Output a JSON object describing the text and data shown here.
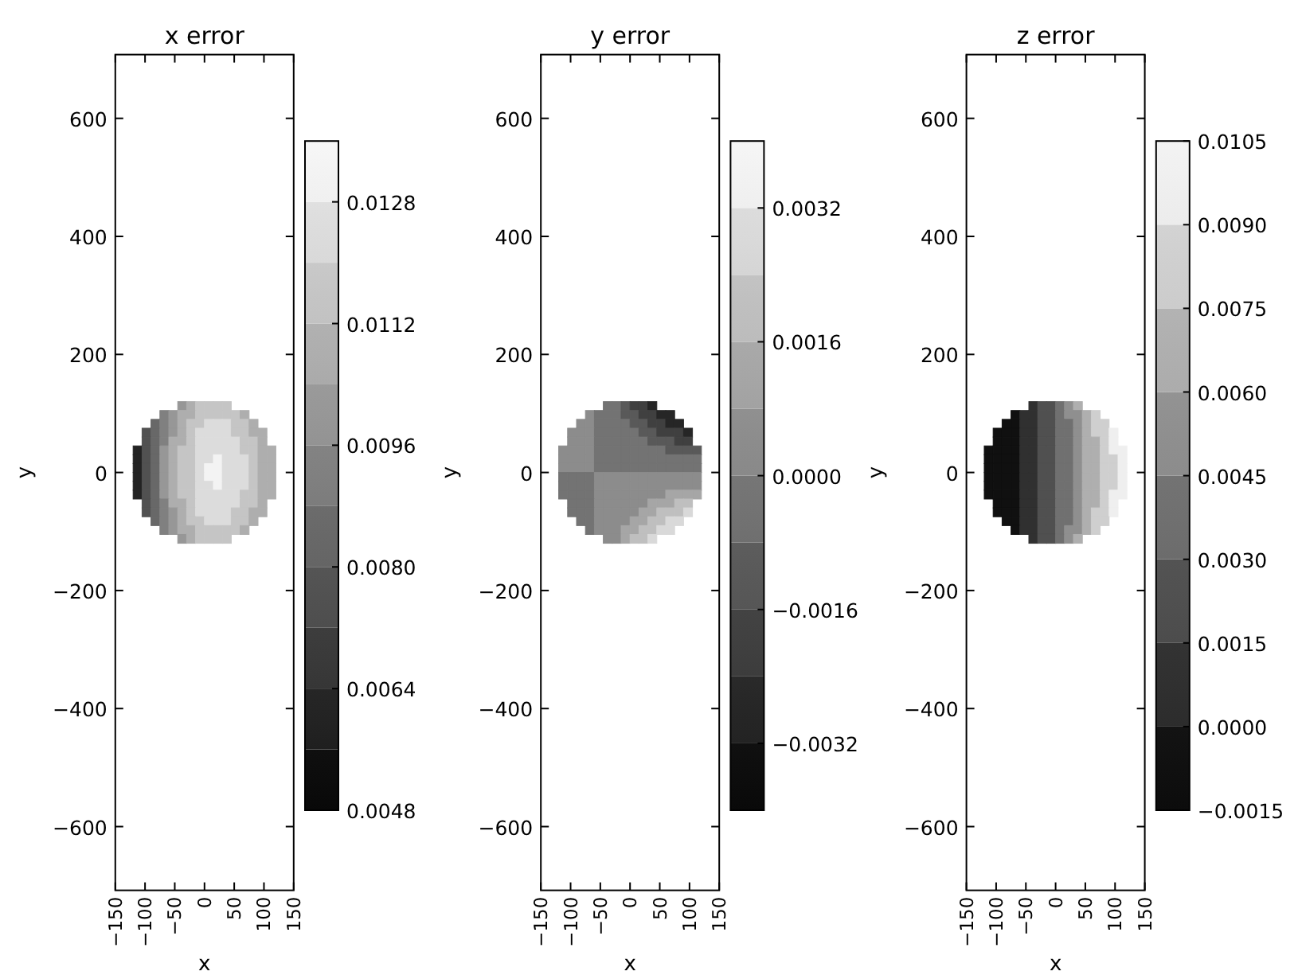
{
  "chart_data": [
    {
      "type": "scatter",
      "title": "x error",
      "xlabel": "x",
      "ylabel": "y",
      "marker": "square",
      "xlim": [
        -150,
        150
      ],
      "ylim": [
        -708,
        708
      ],
      "xticks": [
        {
          "value": -150,
          "label": "−150"
        },
        {
          "value": -100,
          "label": "−100"
        },
        {
          "value": -50,
          "label": "−50"
        },
        0,
        50,
        100,
        150
      ],
      "yticks": [
        {
          "value": -600,
          "label": "−600"
        },
        {
          "value": -400,
          "label": "−400"
        },
        {
          "value": -200,
          "label": "−200"
        },
        0,
        200,
        400,
        600
      ],
      "clim": [
        0.0048,
        0.0136
      ],
      "cticks": [
        0.0048,
        0.0064,
        {
          "value": 0.008,
          "label": "0.0080"
        },
        0.0096,
        0.0112,
        0.0128
      ],
      "x": [
        -37.5,
        -22.5,
        -7.5,
        7.5,
        22.5,
        37.5,
        -67.5,
        -52.5,
        -37.5,
        -22.5,
        -7.5,
        7.5,
        22.5,
        37.5,
        52.5,
        67.5,
        -82.5,
        -67.5,
        -52.5,
        -37.5,
        -22.5,
        -7.5,
        7.5,
        22.5,
        37.5,
        52.5,
        67.5,
        82.5,
        -97.5,
        -82.5,
        -67.5,
        -52.5,
        -37.5,
        -22.5,
        -7.5,
        7.5,
        22.5,
        37.5,
        52.5,
        67.5,
        82.5,
        97.5,
        -97.5,
        -82.5,
        -67.5,
        -52.5,
        -37.5,
        -22.5,
        -7.5,
        7.5,
        22.5,
        37.5,
        52.5,
        67.5,
        82.5,
        97.5,
        -112.5,
        -97.5,
        -82.5,
        -67.5,
        -52.5,
        -37.5,
        -22.5,
        -7.5,
        7.5,
        22.5,
        37.5,
        52.5,
        67.5,
        82.5,
        97.5,
        112.5,
        -112.5,
        -97.5,
        -82.5,
        -67.5,
        -52.5,
        -37.5,
        -22.5,
        -7.5,
        7.5,
        22.5,
        37.5,
        52.5,
        67.5,
        82.5,
        97.5,
        112.5,
        -112.5,
        -97.5,
        -82.5,
        -67.5,
        -52.5,
        -37.5,
        -22.5,
        -7.5,
        7.5,
        22.5,
        37.5,
        52.5,
        67.5,
        82.5,
        97.5,
        112.5,
        -112.5,
        -97.5,
        -82.5,
        -67.5,
        -52.5,
        -37.5,
        -22.5,
        -7.5,
        7.5,
        22.5,
        37.5,
        52.5,
        67.5,
        82.5,
        97.5,
        112.5,
        -112.5,
        -97.5,
        -82.5,
        -67.5,
        -52.5,
        -37.5,
        -22.5,
        -7.5,
        7.5,
        22.5,
        37.5,
        52.5,
        67.5,
        82.5,
        97.5,
        112.5,
        -112.5,
        -97.5,
        -82.5,
        -67.5,
        -52.5,
        -37.5,
        -22.5,
        -7.5,
        7.5,
        22.5,
        37.5,
        52.5,
        67.5,
        82.5,
        97.5,
        112.5,
        -97.5,
        -82.5,
        -67.5,
        -52.5,
        -37.5,
        -22.5,
        -7.5,
        7.5,
        22.5,
        37.5,
        52.5,
        67.5,
        82.5,
        97.5,
        -97.5,
        -82.5,
        -67.5,
        -52.5,
        -37.5,
        -22.5,
        -7.5,
        7.5,
        22.5,
        37.5,
        52.5,
        67.5,
        82.5,
        97.5,
        -82.5,
        -67.5,
        -52.5,
        -37.5,
        -22.5,
        -7.5,
        7.5,
        22.5,
        37.5,
        52.5,
        67.5,
        82.5,
        -67.5,
        -52.5,
        -37.5,
        -22.5,
        -7.5,
        7.5,
        22.5,
        37.5,
        52.5,
        67.5,
        -37.5,
        -22.5,
        -7.5,
        7.5,
        22.5,
        37.5
      ],
      "values": [
        112.5,
        112.5,
        112.5,
        112.5,
        112.5,
        112.5,
        97.5,
        97.5,
        97.5,
        97.5,
        97.5,
        97.5,
        97.5,
        97.5,
        97.5,
        97.5,
        82.5,
        82.5,
        82.5,
        82.5,
        82.5,
        82.5,
        82.5,
        82.5,
        82.5,
        82.5,
        82.5,
        82.5,
        67.5,
        67.5,
        67.5,
        67.5,
        67.5,
        67.5,
        67.5,
        67.5,
        67.5,
        67.5,
        67.5,
        67.5,
        67.5,
        67.5,
        52.5,
        52.5,
        52.5,
        52.5,
        52.5,
        52.5,
        52.5,
        52.5,
        52.5,
        52.5,
        52.5,
        52.5,
        52.5,
        52.5,
        37.5,
        37.5,
        37.5,
        37.5,
        37.5,
        37.5,
        37.5,
        37.5,
        37.5,
        37.5,
        37.5,
        37.5,
        37.5,
        37.5,
        37.5,
        37.5,
        22.5,
        22.5,
        22.5,
        22.5,
        22.5,
        22.5,
        22.5,
        22.5,
        22.5,
        22.5,
        22.5,
        22.5,
        22.5,
        22.5,
        22.5,
        22.5,
        7.5,
        7.5,
        7.5,
        7.5,
        7.5,
        7.5,
        7.5,
        7.5,
        7.5,
        7.5,
        7.5,
        7.5,
        7.5,
        7.5,
        7.5,
        7.5,
        -7.5,
        -7.5,
        -7.5,
        -7.5,
        -7.5,
        -7.5,
        -7.5,
        -7.5,
        -7.5,
        -7.5,
        -7.5,
        -7.5,
        -7.5,
        -7.5,
        -7.5,
        -7.5,
        -22.5,
        -22.5,
        -22.5,
        -22.5,
        -22.5,
        -22.5,
        -22.5,
        -22.5,
        -22.5,
        -22.5,
        -22.5,
        -22.5,
        -22.5,
        -22.5,
        -22.5,
        -22.5,
        -37.5,
        -37.5,
        -37.5,
        -37.5,
        -37.5,
        -37.5,
        -37.5,
        -37.5,
        -37.5,
        -37.5,
        -37.5,
        -37.5,
        -37.5,
        -37.5,
        -37.5,
        -37.5,
        -52.5,
        -52.5,
        -52.5,
        -52.5,
        -52.5,
        -52.5,
        -52.5,
        -52.5,
        -52.5,
        -52.5,
        -52.5,
        -52.5,
        -52.5,
        -52.5,
        -67.5,
        -67.5,
        -67.5,
        -67.5,
        -67.5,
        -67.5,
        -67.5,
        -67.5,
        -67.5,
        -67.5,
        -67.5,
        -67.5,
        -67.5,
        -67.5,
        -82.5,
        -82.5,
        -82.5,
        -82.5,
        -82.5,
        -82.5,
        -82.5,
        -82.5,
        -82.5,
        -82.5,
        -82.5,
        -82.5,
        -97.5,
        -97.5,
        -97.5,
        -97.5,
        -97.5,
        -97.5,
        -97.5,
        -97.5,
        -97.5,
        -97.5,
        -112.5,
        -112.5,
        -112.5,
        -112.5,
        -112.5,
        -112.5
      ],
      "cvalues": [
        0.01,
        0.0108,
        0.0116,
        0.0116,
        0.0116,
        0.0116,
        0.0092,
        0.01,
        0.0108,
        0.0108,
        0.0116,
        0.0116,
        0.0116,
        0.0116,
        0.0116,
        0.0108,
        0.0084,
        0.0092,
        0.01,
        0.0108,
        0.0116,
        0.0116,
        0.0124,
        0.0124,
        0.0124,
        0.0116,
        0.0116,
        0.0108,
        0.0076,
        0.0084,
        0.0092,
        0.01,
        0.0108,
        0.0116,
        0.0124,
        0.0124,
        0.0124,
        0.0124,
        0.0116,
        0.0116,
        0.0108,
        0.0108,
        0.0076,
        0.0084,
        0.0092,
        0.0108,
        0.0108,
        0.0116,
        0.0124,
        0.0124,
        0.0124,
        0.0124,
        0.0124,
        0.0116,
        0.0116,
        0.0108,
        0.006,
        0.0076,
        0.0084,
        0.01,
        0.0108,
        0.0116,
        0.0116,
        0.0124,
        0.0124,
        0.0124,
        0.0124,
        0.0124,
        0.0116,
        0.0116,
        0.0108,
        0.0108,
        0.006,
        0.0076,
        0.0084,
        0.01,
        0.0108,
        0.0116,
        0.0116,
        0.0124,
        0.0124,
        0.0132,
        0.0124,
        0.0124,
        0.0124,
        0.0116,
        0.0108,
        0.0108,
        0.006,
        0.0076,
        0.0084,
        0.01,
        0.0108,
        0.0116,
        0.0116,
        0.0124,
        0.0132,
        0.0132,
        0.0124,
        0.0124,
        0.0124,
        0.0116,
        0.0108,
        0.0108,
        0.006,
        0.0076,
        0.0084,
        0.01,
        0.0108,
        0.0116,
        0.0116,
        0.0124,
        0.0132,
        0.0132,
        0.0124,
        0.0124,
        0.0124,
        0.0116,
        0.0108,
        0.0108,
        0.006,
        0.0076,
        0.0084,
        0.01,
        0.0108,
        0.0116,
        0.0116,
        0.0124,
        0.0124,
        0.0132,
        0.0124,
        0.0124,
        0.0124,
        0.0116,
        0.0108,
        0.0108,
        0.006,
        0.0076,
        0.0084,
        0.01,
        0.0108,
        0.0116,
        0.0116,
        0.0124,
        0.0124,
        0.0124,
        0.0124,
        0.0124,
        0.0116,
        0.0116,
        0.0108,
        0.0108,
        0.0076,
        0.0084,
        0.0092,
        0.0108,
        0.0108,
        0.0116,
        0.0124,
        0.0124,
        0.0124,
        0.0124,
        0.0124,
        0.0116,
        0.0116,
        0.0108,
        0.0076,
        0.0084,
        0.0092,
        0.01,
        0.0108,
        0.0116,
        0.0124,
        0.0124,
        0.0124,
        0.0124,
        0.0116,
        0.0116,
        0.0108,
        0.0108,
        0.0084,
        0.0092,
        0.01,
        0.0108,
        0.0116,
        0.0116,
        0.0124,
        0.0124,
        0.0124,
        0.0116,
        0.0116,
        0.0108,
        0.0092,
        0.01,
        0.0108,
        0.0108,
        0.0116,
        0.0116,
        0.0116,
        0.0116,
        0.0116,
        0.0108,
        0.01,
        0.0108,
        0.0116,
        0.0116,
        0.0116,
        0.0116
      ]
    },
    {
      "type": "scatter",
      "title": "y error",
      "xlabel": "x",
      "ylabel": "y",
      "marker": "square",
      "xlim": [
        -150,
        150
      ],
      "ylim": [
        -708,
        708
      ],
      "xticks": [
        {
          "value": -150,
          "label": "−150"
        },
        {
          "value": -100,
          "label": "−100"
        },
        {
          "value": -50,
          "label": "−50"
        },
        0,
        50,
        100,
        150
      ],
      "yticks": [
        {
          "value": -600,
          "label": "−600"
        },
        {
          "value": -400,
          "label": "−400"
        },
        {
          "value": -200,
          "label": "−200"
        },
        0,
        200,
        400,
        600
      ],
      "clim": [
        -0.004,
        0.004
      ],
      "cticks": [
        {
          "value": -0.0032,
          "label": "−0.0032"
        },
        {
          "value": -0.0016,
          "label": "−0.0016"
        },
        {
          "value": 0,
          "label": "0.0000"
        },
        0.0016,
        0.0032
      ],
      "x": [
        -37.5,
        -22.5,
        -7.5,
        7.5,
        22.5,
        37.5,
        -67.5,
        -52.5,
        -37.5,
        -22.5,
        -7.5,
        7.5,
        22.5,
        37.5,
        52.5,
        67.5,
        -82.5,
        -67.5,
        -52.5,
        -37.5,
        -22.5,
        -7.5,
        7.5,
        22.5,
        37.5,
        52.5,
        67.5,
        82.5,
        -97.5,
        -82.5,
        -67.5,
        -52.5,
        -37.5,
        -22.5,
        -7.5,
        7.5,
        22.5,
        37.5,
        52.5,
        67.5,
        82.5,
        97.5,
        -97.5,
        -82.5,
        -67.5,
        -52.5,
        -37.5,
        -22.5,
        -7.5,
        7.5,
        22.5,
        37.5,
        52.5,
        67.5,
        82.5,
        97.5,
        -112.5,
        -97.5,
        -82.5,
        -67.5,
        -52.5,
        -37.5,
        -22.5,
        -7.5,
        7.5,
        22.5,
        37.5,
        52.5,
        67.5,
        82.5,
        97.5,
        112.5,
        -112.5,
        -97.5,
        -82.5,
        -67.5,
        -52.5,
        -37.5,
        -22.5,
        -7.5,
        7.5,
        22.5,
        37.5,
        52.5,
        67.5,
        82.5,
        97.5,
        112.5,
        -112.5,
        -97.5,
        -82.5,
        -67.5,
        -52.5,
        -37.5,
        -22.5,
        -7.5,
        7.5,
        22.5,
        37.5,
        52.5,
        67.5,
        82.5,
        97.5,
        112.5,
        -112.5,
        -97.5,
        -82.5,
        -67.5,
        -52.5,
        -37.5,
        -22.5,
        -7.5,
        7.5,
        22.5,
        37.5,
        52.5,
        67.5,
        82.5,
        97.5,
        112.5,
        -112.5,
        -97.5,
        -82.5,
        -67.5,
        -52.5,
        -37.5,
        -22.5,
        -7.5,
        7.5,
        22.5,
        37.5,
        52.5,
        67.5,
        82.5,
        97.5,
        112.5,
        -112.5,
        -97.5,
        -82.5,
        -67.5,
        -52.5,
        -37.5,
        -22.5,
        -7.5,
        7.5,
        22.5,
        37.5,
        52.5,
        67.5,
        82.5,
        97.5,
        112.5,
        -97.5,
        -82.5,
        -67.5,
        -52.5,
        -37.5,
        -22.5,
        -7.5,
        7.5,
        22.5,
        37.5,
        52.5,
        67.5,
        82.5,
        97.5,
        -97.5,
        -82.5,
        -67.5,
        -52.5,
        -37.5,
        -22.5,
        -7.5,
        7.5,
        22.5,
        37.5,
        52.5,
        67.5,
        82.5,
        97.5,
        -82.5,
        -67.5,
        -52.5,
        -37.5,
        -22.5,
        -7.5,
        7.5,
        22.5,
        37.5,
        52.5,
        67.5,
        82.5,
        -67.5,
        -52.5,
        -37.5,
        -22.5,
        -7.5,
        7.5,
        22.5,
        37.5,
        52.5,
        67.5,
        -37.5,
        -22.5,
        -7.5,
        7.5,
        22.5,
        37.5
      ],
      "values": [
        112.5,
        112.5,
        112.5,
        112.5,
        112.5,
        112.5,
        97.5,
        97.5,
        97.5,
        97.5,
        97.5,
        97.5,
        97.5,
        97.5,
        97.5,
        97.5,
        82.5,
        82.5,
        82.5,
        82.5,
        82.5,
        82.5,
        82.5,
        82.5,
        82.5,
        82.5,
        82.5,
        82.5,
        67.5,
        67.5,
        67.5,
        67.5,
        67.5,
        67.5,
        67.5,
        67.5,
        67.5,
        67.5,
        67.5,
        67.5,
        67.5,
        67.5,
        52.5,
        52.5,
        52.5,
        52.5,
        52.5,
        52.5,
        52.5,
        52.5,
        52.5,
        52.5,
        52.5,
        52.5,
        52.5,
        52.5,
        37.5,
        37.5,
        37.5,
        37.5,
        37.5,
        37.5,
        37.5,
        37.5,
        37.5,
        37.5,
        37.5,
        37.5,
        37.5,
        37.5,
        37.5,
        37.5,
        22.5,
        22.5,
        22.5,
        22.5,
        22.5,
        22.5,
        22.5,
        22.5,
        22.5,
        22.5,
        22.5,
        22.5,
        22.5,
        22.5,
        22.5,
        22.5,
        7.5,
        7.5,
        7.5,
        7.5,
        7.5,
        7.5,
        7.5,
        7.5,
        7.5,
        7.5,
        7.5,
        7.5,
        7.5,
        7.5,
        7.5,
        7.5,
        -7.5,
        -7.5,
        -7.5,
        -7.5,
        -7.5,
        -7.5,
        -7.5,
        -7.5,
        -7.5,
        -7.5,
        -7.5,
        -7.5,
        -7.5,
        -7.5,
        -7.5,
        -7.5,
        -22.5,
        -22.5,
        -22.5,
        -22.5,
        -22.5,
        -22.5,
        -22.5,
        -22.5,
        -22.5,
        -22.5,
        -22.5,
        -22.5,
        -22.5,
        -22.5,
        -22.5,
        -22.5,
        -37.5,
        -37.5,
        -37.5,
        -37.5,
        -37.5,
        -37.5,
        -37.5,
        -37.5,
        -37.5,
        -37.5,
        -37.5,
        -37.5,
        -37.5,
        -37.5,
        -37.5,
        -37.5,
        -52.5,
        -52.5,
        -52.5,
        -52.5,
        -52.5,
        -52.5,
        -52.5,
        -52.5,
        -52.5,
        -52.5,
        -52.5,
        -52.5,
        -52.5,
        -52.5,
        -67.5,
        -67.5,
        -67.5,
        -67.5,
        -67.5,
        -67.5,
        -67.5,
        -67.5,
        -67.5,
        -67.5,
        -67.5,
        -67.5,
        -67.5,
        -67.5,
        -82.5,
        -82.5,
        -82.5,
        -82.5,
        -82.5,
        -82.5,
        -82.5,
        -82.5,
        -82.5,
        -82.5,
        -82.5,
        -82.5,
        -97.5,
        -97.5,
        -97.5,
        -97.5,
        -97.5,
        -97.5,
        -97.5,
        -97.5,
        -97.5,
        -97.5,
        -112.5,
        -112.5,
        -112.5,
        -112.5,
        -112.5,
        -112.5
      ],
      "cvalues": [
        -0.0004,
        -0.0004,
        -0.0012,
        -0.002,
        -0.002,
        -0.0028,
        0.0004,
        -0.0004,
        -0.0004,
        -0.0004,
        -0.0012,
        -0.0012,
        -0.002,
        -0.002,
        -0.0028,
        -0.0028,
        0.0004,
        0.0004,
        -0.0004,
        -0.0004,
        -0.0004,
        -0.0004,
        -0.0012,
        -0.0012,
        -0.002,
        -0.002,
        -0.0028,
        -0.0028,
        0.0004,
        0.0004,
        0.0004,
        -0.0004,
        -0.0004,
        -0.0004,
        -0.0004,
        -0.0004,
        -0.0012,
        -0.0012,
        -0.002,
        -0.002,
        -0.002,
        -0.0028,
        0.0004,
        0.0004,
        0.0004,
        -0.0004,
        -0.0004,
        -0.0004,
        -0.0004,
        -0.0004,
        -0.0004,
        -0.0012,
        -0.0012,
        -0.0012,
        -0.002,
        -0.002,
        0.0004,
        0.0004,
        0.0004,
        0.0004,
        -0.0004,
        -0.0004,
        -0.0004,
        -0.0004,
        -0.0004,
        -0.0004,
        -0.0004,
        -0.0004,
        -0.0012,
        -0.0012,
        -0.0012,
        -0.0012,
        0.0004,
        0.0004,
        0.0004,
        0.0004,
        -0.0004,
        -0.0004,
        -0.0004,
        -0.0004,
        -0.0004,
        -0.0004,
        -0.0004,
        -0.0004,
        -0.0004,
        -0.0004,
        -0.0004,
        -0.0004,
        0.0004,
        0.0004,
        0.0004,
        0.0004,
        -0.0004,
        -0.0004,
        -0.0004,
        -0.0004,
        -0.0004,
        -0.0004,
        -0.0004,
        -0.0004,
        -0.0004,
        -0.0004,
        -0.0004,
        -0.0004,
        -0.0004,
        -0.0004,
        -0.0004,
        -0.0004,
        0.0004,
        0.0004,
        0.0004,
        0.0004,
        0.0004,
        0.0004,
        0.0004,
        0.0004,
        0.0004,
        0.0004,
        0.0004,
        0.0004,
        -0.0004,
        -0.0004,
        -0.0004,
        -0.0004,
        0.0004,
        0.0004,
        0.0004,
        0.0004,
        0.0004,
        0.0004,
        0.0004,
        0.0004,
        0.0004,
        0.0004,
        0.0004,
        0.0004,
        -0.0004,
        -0.0004,
        -0.0004,
        -0.0004,
        0.0004,
        0.0004,
        0.0004,
        0.0004,
        0.0004,
        0.0004,
        0.0004,
        0.0004,
        0.0012,
        0.0012,
        0.0012,
        0.0012,
        -0.0004,
        -0.0004,
        -0.0004,
        0.0004,
        0.0004,
        0.0004,
        0.0004,
        0.0004,
        0.0004,
        0.0012,
        0.0012,
        0.0012,
        0.002,
        0.002,
        -0.0004,
        -0.0004,
        -0.0004,
        0.0004,
        0.0004,
        0.0004,
        0.0004,
        0.0004,
        0.0012,
        0.0012,
        0.002,
        0.002,
        0.002,
        0.0028,
        -0.0004,
        -0.0004,
        0.0004,
        0.0004,
        0.0004,
        0.0004,
        0.0012,
        0.0012,
        0.002,
        0.002,
        0.0028,
        0.0028,
        -0.0004,
        0.0004,
        0.0004,
        0.0004,
        0.0012,
        0.0012,
        0.002,
        0.002,
        0.0028,
        0.0028,
        0.0004,
        0.0004,
        0.0012,
        0.002,
        0.002,
        0.0028
      ]
    },
    {
      "type": "scatter",
      "title": "z error",
      "xlabel": "x",
      "ylabel": "y",
      "marker": "square",
      "xlim": [
        -150,
        150
      ],
      "ylim": [
        -708,
        708
      ],
      "xticks": [
        {
          "value": -150,
          "label": "−150"
        },
        {
          "value": -100,
          "label": "−100"
        },
        {
          "value": -50,
          "label": "−50"
        },
        0,
        50,
        100,
        150
      ],
      "yticks": [
        {
          "value": -600,
          "label": "−600"
        },
        {
          "value": -400,
          "label": "−400"
        },
        {
          "value": -200,
          "label": "−200"
        },
        0,
        200,
        400,
        600
      ],
      "clim": [
        -0.0015,
        0.0105
      ],
      "cticks": [
        {
          "value": -0.0015,
          "label": "−0.0015"
        },
        {
          "value": 0,
          "label": "0.0000"
        },
        0.0015,
        {
          "value": 0.003,
          "label": "0.0030"
        },
        0.0045,
        {
          "value": 0.006,
          "label": "0.0060"
        },
        0.0075,
        {
          "value": 0.009,
          "label": "0.0090"
        },
        0.0105
      ],
      "x": [
        -37.5,
        -22.5,
        -7.5,
        7.5,
        22.5,
        37.5,
        -67.5,
        -52.5,
        -37.5,
        -22.5,
        -7.5,
        7.5,
        22.5,
        37.5,
        52.5,
        67.5,
        -82.5,
        -67.5,
        -52.5,
        -37.5,
        -22.5,
        -7.5,
        7.5,
        22.5,
        37.5,
        52.5,
        67.5,
        82.5,
        -97.5,
        -82.5,
        -67.5,
        -52.5,
        -37.5,
        -22.5,
        -7.5,
        7.5,
        22.5,
        37.5,
        52.5,
        67.5,
        82.5,
        97.5,
        -97.5,
        -82.5,
        -67.5,
        -52.5,
        -37.5,
        -22.5,
        -7.5,
        7.5,
        22.5,
        37.5,
        52.5,
        67.5,
        82.5,
        97.5,
        -112.5,
        -97.5,
        -82.5,
        -67.5,
        -52.5,
        -37.5,
        -22.5,
        -7.5,
        7.5,
        22.5,
        37.5,
        52.5,
        67.5,
        82.5,
        97.5,
        112.5,
        -112.5,
        -97.5,
        -82.5,
        -67.5,
        -52.5,
        -37.5,
        -22.5,
        -7.5,
        7.5,
        22.5,
        37.5,
        52.5,
        67.5,
        82.5,
        97.5,
        112.5,
        -112.5,
        -97.5,
        -82.5,
        -67.5,
        -52.5,
        -37.5,
        -22.5,
        -7.5,
        7.5,
        22.5,
        37.5,
        52.5,
        67.5,
        82.5,
        97.5,
        112.5,
        -112.5,
        -97.5,
        -82.5,
        -67.5,
        -52.5,
        -37.5,
        -22.5,
        -7.5,
        7.5,
        22.5,
        37.5,
        52.5,
        67.5,
        82.5,
        97.5,
        112.5,
        -112.5,
        -97.5,
        -82.5,
        -67.5,
        -52.5,
        -37.5,
        -22.5,
        -7.5,
        7.5,
        22.5,
        37.5,
        52.5,
        67.5,
        82.5,
        97.5,
        112.5,
        -112.5,
        -97.5,
        -82.5,
        -67.5,
        -52.5,
        -37.5,
        -22.5,
        -7.5,
        7.5,
        22.5,
        37.5,
        52.5,
        67.5,
        82.5,
        97.5,
        112.5,
        -97.5,
        -82.5,
        -67.5,
        -52.5,
        -37.5,
        -22.5,
        -7.5,
        7.5,
        22.5,
        37.5,
        52.5,
        67.5,
        82.5,
        97.5,
        -97.5,
        -82.5,
        -67.5,
        -52.5,
        -37.5,
        -22.5,
        -7.5,
        7.5,
        22.5,
        37.5,
        52.5,
        67.5,
        82.5,
        97.5,
        -82.5,
        -67.5,
        -52.5,
        -37.5,
        -22.5,
        -7.5,
        7.5,
        22.5,
        37.5,
        52.5,
        67.5,
        82.5,
        -67.5,
        -52.5,
        -37.5,
        -22.5,
        -7.5,
        7.5,
        22.5,
        37.5,
        52.5,
        67.5,
        -37.5,
        -22.5,
        -7.5,
        7.5,
        22.5,
        37.5
      ],
      "values": [
        112.5,
        112.5,
        112.5,
        112.5,
        112.5,
        112.5,
        97.5,
        97.5,
        97.5,
        97.5,
        97.5,
        97.5,
        97.5,
        97.5,
        97.5,
        97.5,
        82.5,
        82.5,
        82.5,
        82.5,
        82.5,
        82.5,
        82.5,
        82.5,
        82.5,
        82.5,
        82.5,
        82.5,
        67.5,
        67.5,
        67.5,
        67.5,
        67.5,
        67.5,
        67.5,
        67.5,
        67.5,
        67.5,
        67.5,
        67.5,
        67.5,
        67.5,
        52.5,
        52.5,
        52.5,
        52.5,
        52.5,
        52.5,
        52.5,
        52.5,
        52.5,
        52.5,
        52.5,
        52.5,
        52.5,
        52.5,
        37.5,
        37.5,
        37.5,
        37.5,
        37.5,
        37.5,
        37.5,
        37.5,
        37.5,
        37.5,
        37.5,
        37.5,
        37.5,
        37.5,
        37.5,
        37.5,
        22.5,
        22.5,
        22.5,
        22.5,
        22.5,
        22.5,
        22.5,
        22.5,
        22.5,
        22.5,
        22.5,
        22.5,
        22.5,
        22.5,
        22.5,
        22.5,
        7.5,
        7.5,
        7.5,
        7.5,
        7.5,
        7.5,
        7.5,
        7.5,
        7.5,
        7.5,
        7.5,
        7.5,
        7.5,
        7.5,
        7.5,
        7.5,
        -7.5,
        -7.5,
        -7.5,
        -7.5,
        -7.5,
        -7.5,
        -7.5,
        -7.5,
        -7.5,
        -7.5,
        -7.5,
        -7.5,
        -7.5,
        -7.5,
        -7.5,
        -7.5,
        -22.5,
        -22.5,
        -22.5,
        -22.5,
        -22.5,
        -22.5,
        -22.5,
        -22.5,
        -22.5,
        -22.5,
        -22.5,
        -22.5,
        -22.5,
        -22.5,
        -22.5,
        -22.5,
        -37.5,
        -37.5,
        -37.5,
        -37.5,
        -37.5,
        -37.5,
        -37.5,
        -37.5,
        -37.5,
        -37.5,
        -37.5,
        -37.5,
        -37.5,
        -37.5,
        -37.5,
        -37.5,
        -52.5,
        -52.5,
        -52.5,
        -52.5,
        -52.5,
        -52.5,
        -52.5,
        -52.5,
        -52.5,
        -52.5,
        -52.5,
        -52.5,
        -52.5,
        -52.5,
        -67.5,
        -67.5,
        -67.5,
        -67.5,
        -67.5,
        -67.5,
        -67.5,
        -67.5,
        -67.5,
        -67.5,
        -67.5,
        -67.5,
        -67.5,
        -67.5,
        -82.5,
        -82.5,
        -82.5,
        -82.5,
        -82.5,
        -82.5,
        -82.5,
        -82.5,
        -82.5,
        -82.5,
        -82.5,
        -82.5,
        -97.5,
        -97.5,
        -97.5,
        -97.5,
        -97.5,
        -97.5,
        -97.5,
        -97.5,
        -97.5,
        -97.5,
        -112.5,
        -112.5,
        -112.5,
        -112.5,
        -112.5,
        -112.5
      ],
      "cvalues": [
        0.00075,
        0.00225,
        0.00225,
        0.00375,
        0.00525,
        0.00675,
        -0.00075,
        0.00075,
        0.00075,
        0.00225,
        0.00225,
        0.00375,
        0.00525,
        0.00525,
        0.00675,
        0.00825,
        -0.00075,
        -0.00075,
        0.00075,
        0.00075,
        0.00225,
        0.00225,
        0.00375,
        0.00375,
        0.00525,
        0.00675,
        0.00825,
        0.00825,
        -0.00075,
        -0.00075,
        -0.00075,
        0.00075,
        0.00075,
        0.00225,
        0.00225,
        0.00375,
        0.00375,
        0.00525,
        0.00675,
        0.00825,
        0.00825,
        0.00975,
        -0.00075,
        -0.00075,
        -0.00075,
        0.00075,
        0.00075,
        0.00225,
        0.00225,
        0.00375,
        0.00375,
        0.00525,
        0.00675,
        0.00675,
        0.00825,
        0.00975,
        -0.00075,
        -0.00075,
        -0.00075,
        -0.00075,
        0.00075,
        0.00075,
        0.00225,
        0.00225,
        0.00375,
        0.00375,
        0.00525,
        0.00675,
        0.00675,
        0.00825,
        0.00975,
        0.00975,
        -0.00075,
        -0.00075,
        -0.00075,
        -0.00075,
        0.00075,
        0.00075,
        0.00225,
        0.00225,
        0.00375,
        0.00375,
        0.00525,
        0.00675,
        0.00675,
        0.00825,
        0.00825,
        0.00975,
        -0.00075,
        -0.00075,
        -0.00075,
        -0.00075,
        0.00075,
        0.00075,
        0.00225,
        0.00225,
        0.00375,
        0.00375,
        0.00525,
        0.00675,
        0.00675,
        0.00825,
        0.00825,
        0.00975,
        -0.00075,
        -0.00075,
        -0.00075,
        -0.00075,
        0.00075,
        0.00075,
        0.00225,
        0.00225,
        0.00375,
        0.00375,
        0.00525,
        0.00675,
        0.00675,
        0.00825,
        0.00825,
        0.00975,
        -0.00075,
        -0.00075,
        -0.00075,
        -0.00075,
        0.00075,
        0.00075,
        0.00225,
        0.00225,
        0.00375,
        0.00375,
        0.00525,
        0.00675,
        0.00675,
        0.00825,
        0.00825,
        0.00975,
        -0.00075,
        -0.00075,
        -0.00075,
        -0.00075,
        0.00075,
        0.00075,
        0.00225,
        0.00225,
        0.00375,
        0.00375,
        0.00525,
        0.00675,
        0.00675,
        0.00825,
        0.00975,
        0.00975,
        -0.00075,
        -0.00075,
        -0.00075,
        0.00075,
        0.00075,
        0.00225,
        0.00225,
        0.00375,
        0.00375,
        0.00525,
        0.00675,
        0.00675,
        0.00825,
        0.00975,
        -0.00075,
        -0.00075,
        -0.00075,
        0.00075,
        0.00075,
        0.00225,
        0.00225,
        0.00375,
        0.00375,
        0.00525,
        0.00675,
        0.00825,
        0.00825,
        0.00975,
        -0.00075,
        -0.00075,
        0.00075,
        0.00075,
        0.00225,
        0.00225,
        0.00375,
        0.00375,
        0.00525,
        0.00675,
        0.00825,
        0.00825,
        -0.00075,
        0.00075,
        0.00075,
        0.00225,
        0.00225,
        0.00375,
        0.00525,
        0.00525,
        0.00675,
        0.00825,
        0.00075,
        0.00225,
        0.00225,
        0.00375,
        0.00525,
        0.00675
      ]
    }
  ]
}
